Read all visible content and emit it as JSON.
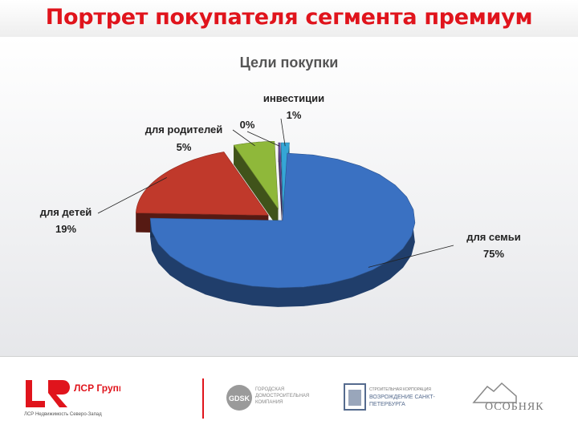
{
  "page": {
    "title": "Портрет покупателя сегмента премиум"
  },
  "chart_data": {
    "type": "pie",
    "title": "Цели покупки",
    "slices": [
      {
        "label": "для семьи",
        "value": 75,
        "display": "75%",
        "color": "#3a71c2"
      },
      {
        "label": "для детей",
        "value": 19,
        "display": "19%",
        "color": "#c0392b"
      },
      {
        "label": "для родителей",
        "value": 5,
        "display": "5%",
        "color": "#8fb83a"
      },
      {
        "label": "",
        "value": 0,
        "display": "0%",
        "color": "#6b4fa0"
      },
      {
        "label": "инвестиции",
        "value": 1,
        "display": "1%",
        "color": "#35a6d6"
      }
    ]
  },
  "footer": {
    "lsr_name": "ЛСР Группа",
    "lsr_sub": "ЛСР Недвижимость Северо-Запад",
    "gdsk_abbr": "GDSK",
    "gdsk_text": "ГОРОДСКАЯ ДОМОСТРОИТЕЛЬНАЯ КОМПАНИЯ",
    "vozr_small": "СТРОИТЕЛЬНАЯ КОРПОРАЦИЯ",
    "vozr_text": "ВОЗРОЖДЕНИЕ САНКТ-ПЕТЕРБУРГА",
    "osob_text": "ОСОБНЯК"
  }
}
